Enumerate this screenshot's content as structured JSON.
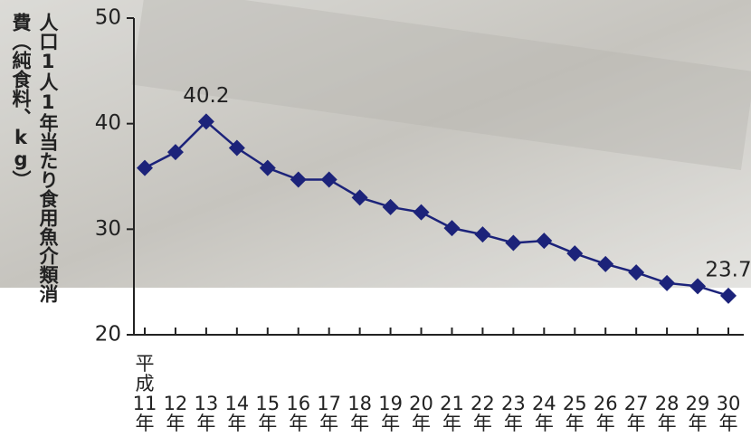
{
  "chart_data": {
    "type": "line",
    "y_label": "人口1人1年当たり食用魚介類消費（純食料、kg）",
    "categories": [
      "平\n成\n11\n年",
      "12\n年",
      "13\n年",
      "14\n年",
      "15\n年",
      "16\n年",
      "17\n年",
      "18\n年",
      "19\n年",
      "20\n年",
      "21\n年",
      "22\n年",
      "23\n年",
      "24\n年",
      "25\n年",
      "26\n年",
      "27\n年",
      "28\n年",
      "29\n年",
      "30\n年"
    ],
    "values": [
      35.8,
      37.3,
      40.2,
      37.7,
      35.8,
      34.7,
      34.7,
      33.0,
      32.1,
      31.6,
      30.1,
      29.5,
      28.7,
      28.9,
      27.7,
      26.7,
      25.9,
      24.9,
      24.6,
      23.7
    ],
    "labeled_points": [
      2,
      19
    ],
    "color": "#1c237a",
    "ylim": [
      20,
      50
    ],
    "yticks": [
      20,
      30,
      40,
      50
    ]
  }
}
